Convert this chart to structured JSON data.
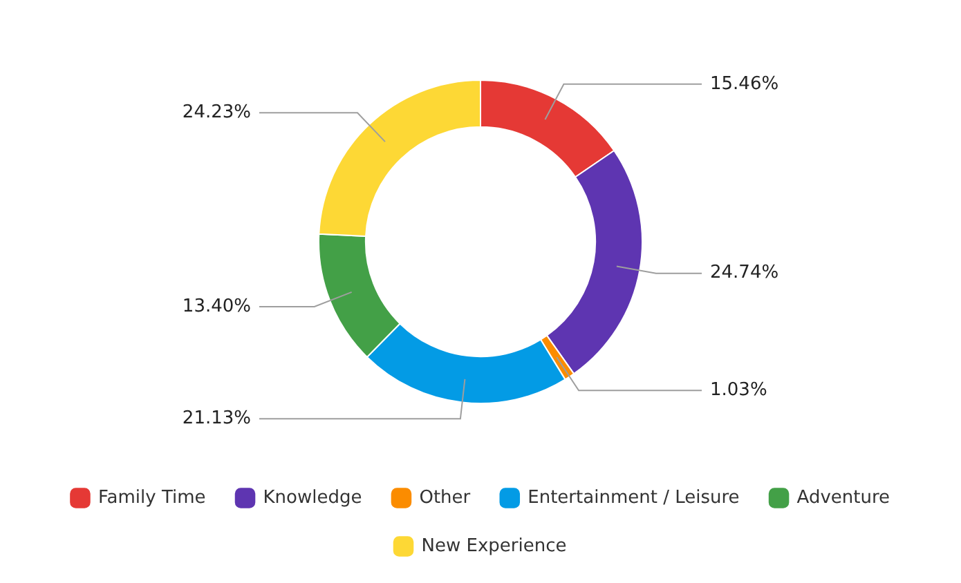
{
  "chart_data": {
    "type": "donut",
    "categories": [
      "Family Time",
      "Knowledge",
      "Other",
      "Entertainment / Leisure",
      "Adventure",
      "New Experience"
    ],
    "values": [
      15.46,
      24.74,
      1.03,
      21.13,
      13.4,
      24.23
    ],
    "colors": [
      "#e53935",
      "#5e35b1",
      "#fb8c00",
      "#039be5",
      "#43a047",
      "#fdd835"
    ],
    "value_labels": [
      "15.46%",
      "24.74%",
      "1.03%",
      "21.13%",
      "13.40%",
      "24.23%"
    ],
    "legend": "bottom"
  }
}
